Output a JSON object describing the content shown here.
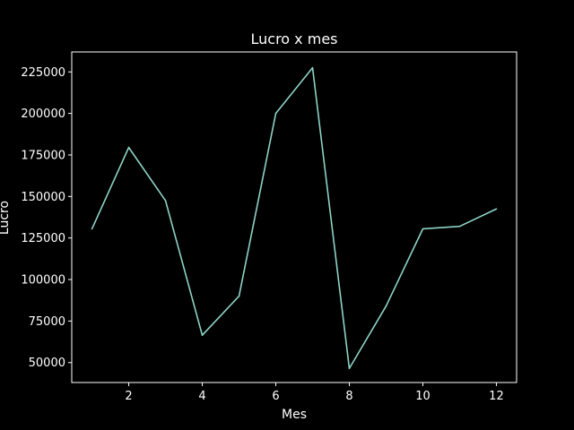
{
  "chart_data": {
    "type": "line",
    "title": "Lucro x mes",
    "xlabel": "Mes",
    "ylabel": "Lucro",
    "x": [
      1,
      2,
      3,
      4,
      5,
      6,
      7,
      8,
      9,
      10,
      11,
      12
    ],
    "series": [
      {
        "values": [
          130500,
          179500,
          147500,
          66500,
          90000,
          200000,
          227500,
          46500,
          84000,
          130500,
          132000,
          142500
        ]
      }
    ],
    "xlim": [
      0.45,
      12.55
    ],
    "ylim": [
      38000,
      237000
    ],
    "xticks": [
      2,
      4,
      6,
      8,
      10,
      12
    ],
    "xtick_labels": [
      "2",
      "4",
      "6",
      "8",
      "10",
      "12"
    ],
    "yticks": [
      50000,
      75000,
      100000,
      125000,
      150000,
      175000,
      200000,
      225000
    ],
    "ytick_labels": [
      "50000",
      "75000",
      "100000",
      "125000",
      "150000",
      "175000",
      "200000",
      "225000"
    ],
    "grid": false,
    "legend": "none",
    "colors": {
      "background": "#000000",
      "axes": "#ffffff",
      "text": "#ffffff",
      "line": "#8dd3c7"
    }
  }
}
